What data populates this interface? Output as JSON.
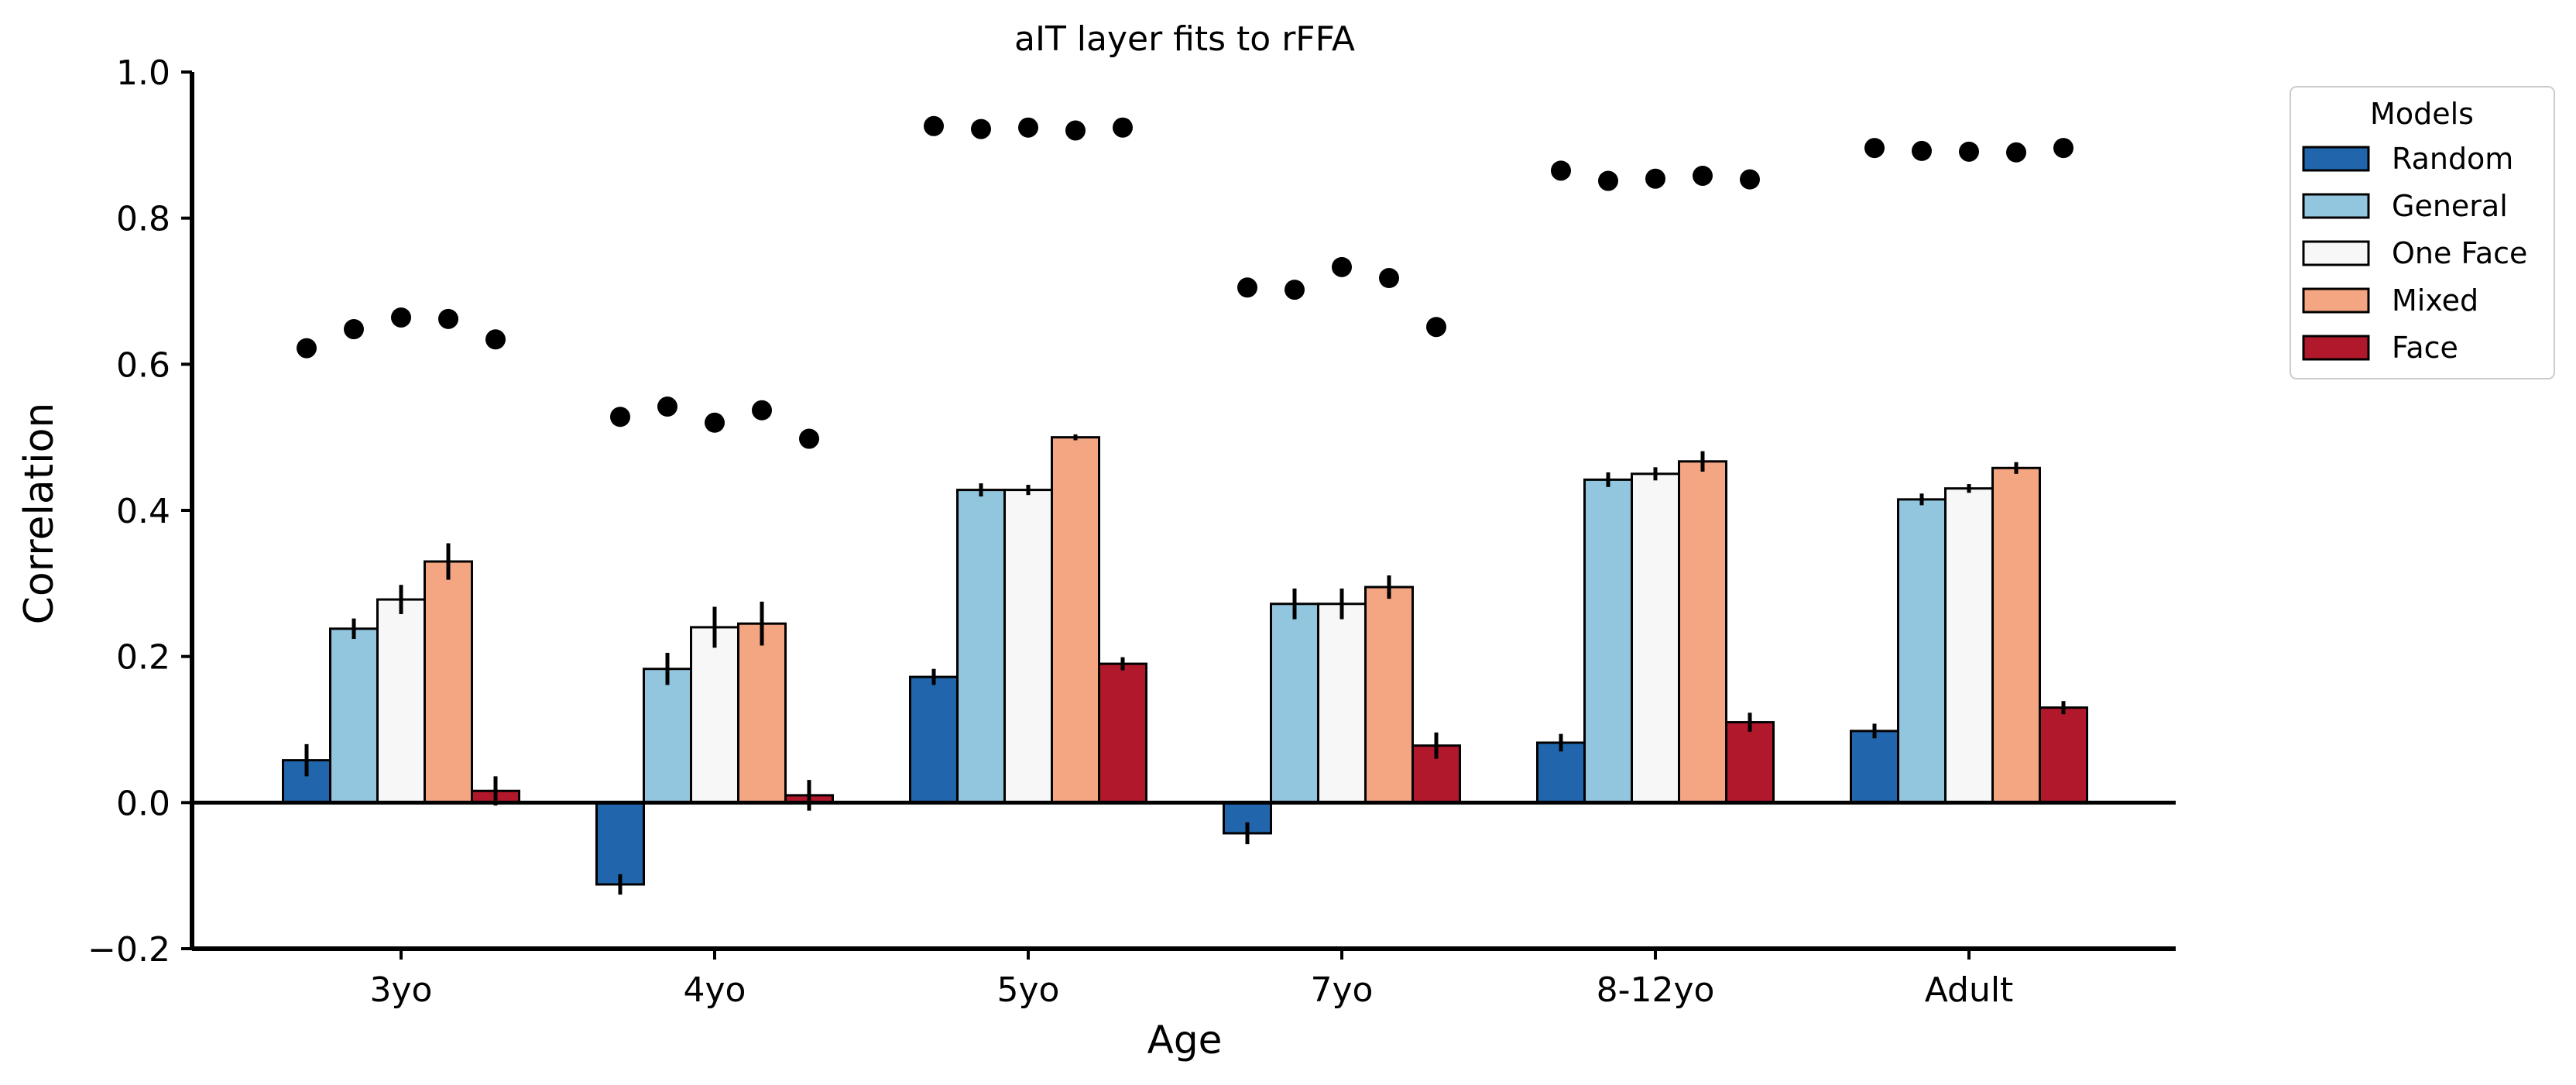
{
  "chart_data": {
    "type": "bar",
    "title": "aIT layer fits to rFFA",
    "xlabel": "Age",
    "ylabel": "Correlation",
    "ylim": [
      -0.2,
      1.0
    ],
    "yticks": [
      -0.2,
      0.0,
      0.2,
      0.4,
      0.6,
      0.8,
      1.0
    ],
    "ytick_labels": [
      "−0.2",
      "0.0",
      "0.2",
      "0.4",
      "0.6",
      "0.8",
      "1.0"
    ],
    "categories": [
      "3yo",
      "4yo",
      "5yo",
      "7yo",
      "8-12yo",
      "Adult"
    ],
    "legend": {
      "title": "Models",
      "placement": "outside-top-right"
    },
    "series": [
      {
        "name": "Random",
        "color": "#2166ac",
        "values": [
          0.058,
          -0.112,
          0.172,
          -0.042,
          0.082,
          0.098
        ],
        "errors": [
          0.022,
          0.014,
          0.011,
          0.015,
          0.012,
          0.01
        ]
      },
      {
        "name": "General",
        "color": "#92c5de",
        "values": [
          0.238,
          0.183,
          0.428,
          0.272,
          0.442,
          0.415
        ],
        "errors": [
          0.014,
          0.022,
          0.009,
          0.021,
          0.01,
          0.008
        ]
      },
      {
        "name": "One Face",
        "color": "#f7f7f7",
        "values": [
          0.278,
          0.24,
          0.428,
          0.272,
          0.45,
          0.43
        ],
        "errors": [
          0.02,
          0.028,
          0.007,
          0.021,
          0.009,
          0.006
        ]
      },
      {
        "name": "Mixed",
        "color": "#f4a582",
        "values": [
          0.33,
          0.245,
          0.5,
          0.295,
          0.467,
          0.458
        ],
        "errors": [
          0.025,
          0.03,
          0.004,
          0.016,
          0.014,
          0.008
        ]
      },
      {
        "name": "Face",
        "color": "#b2182b",
        "values": [
          0.016,
          0.01,
          0.19,
          0.078,
          0.11,
          0.13
        ],
        "errors": [
          0.02,
          0.021,
          0.009,
          0.018,
          0.013,
          0.009
        ]
      }
    ],
    "noise_ceiling_points": [
      [
        0.622,
        0.648,
        0.664,
        0.662,
        0.634
      ],
      [
        0.528,
        0.542,
        0.52,
        0.537,
        0.498
      ],
      [
        0.926,
        0.922,
        0.924,
        0.92,
        0.924
      ],
      [
        0.705,
        0.702,
        0.733,
        0.718,
        0.651
      ],
      [
        0.865,
        0.851,
        0.854,
        0.858,
        0.853
      ],
      [
        0.896,
        0.892,
        0.891,
        0.89,
        0.896
      ]
    ],
    "grid": false
  }
}
